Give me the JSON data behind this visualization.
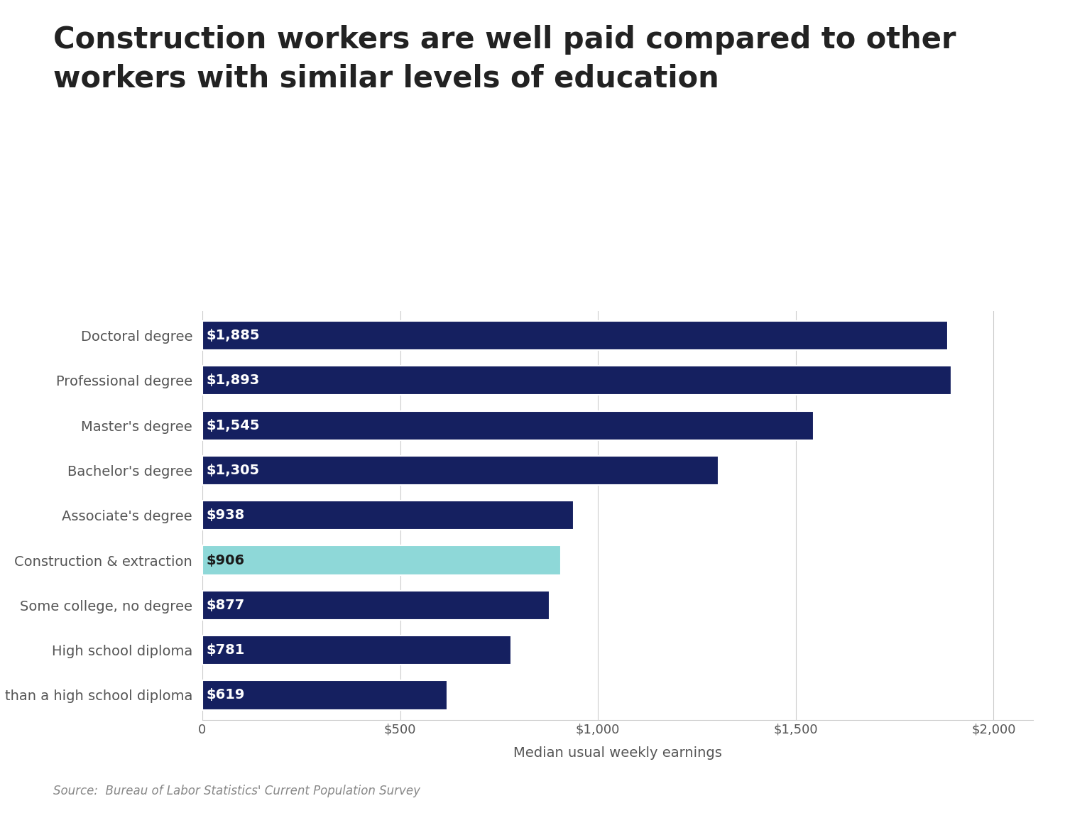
{
  "title": "Construction workers are well paid compared to other\nworkers with similar levels of education",
  "categories": [
    "Less than a high school diploma",
    "High school diploma",
    "Some college, no degree",
    "Construction & extraction",
    "Associate's degree",
    "Bachelor's degree",
    "Master's degree",
    "Professional degree",
    "Doctoral degree"
  ],
  "values": [
    619,
    781,
    877,
    906,
    938,
    1305,
    1545,
    1893,
    1885
  ],
  "bar_colors": [
    "#152060",
    "#152060",
    "#152060",
    "#8ed8d8",
    "#152060",
    "#152060",
    "#152060",
    "#152060",
    "#152060"
  ],
  "labels": [
    "$619",
    "$781",
    "$877",
    "$906",
    "$938",
    "$1,305",
    "$1,545",
    "$1,893",
    "$1,885"
  ],
  "xlabel": "Median usual weekly earnings",
  "xlim": [
    0,
    2100
  ],
  "xtick_positions": [
    0,
    500,
    1000,
    1500,
    2000
  ],
  "xtick_labels": [
    "0",
    "$500",
    "$1,000",
    "$1,500",
    "$2,000"
  ],
  "source": "Source:  Bureau of Labor Statistics' Current Population Survey",
  "background_color": "#ffffff",
  "title_color": "#222222",
  "label_color": "#ffffff",
  "construction_label_color": "#1a1a1a",
  "axis_label_color": "#555555",
  "tick_label_color": "#555555",
  "source_color": "#888888",
  "title_fontsize": 30,
  "bar_height": 0.65,
  "label_fontsize": 14,
  "xlabel_fontsize": 14
}
